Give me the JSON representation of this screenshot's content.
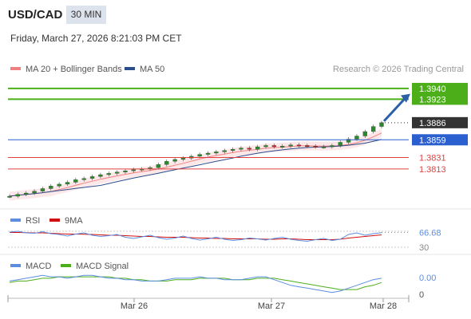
{
  "header": {
    "symbol": "USD/CAD",
    "timeframe": "30 MIN",
    "datetime": "Friday, March 27, 2026 8:21:03 PM CET"
  },
  "colors": {
    "price_line": "#333333",
    "ma20": "#f08080",
    "ma50": "#2b4d8c",
    "resistance": "#4caf1a",
    "pivot": "#2b5fd0",
    "support": "#e04040",
    "rsi": "#5b8de0",
    "rsi_ma": "#d01010",
    "macd": "#5b8de0",
    "macd_signal": "#4caf1a",
    "arrow": "#2b5fa8"
  },
  "chart_data": [
    {
      "type": "candlestick",
      "legend": [
        {
          "name": "MA 20 + Bollinger Bands",
          "color": "#f08080"
        },
        {
          "name": "MA 50",
          "color": "#2b4d8c"
        }
      ],
      "watermark": "Research © 2026 Trading Central",
      "x_ticks": [
        "Mar 26",
        "Mar 27",
        "Mar 28"
      ],
      "ylim": [
        1.3765,
        1.3955
      ],
      "price_series": [
        1.377,
        1.3773,
        1.3775,
        1.3778,
        1.3782,
        1.3786,
        1.3789,
        1.3792,
        1.3796,
        1.3798,
        1.3801,
        1.3804,
        1.3806,
        1.3808,
        1.381,
        1.3812,
        1.3813,
        1.3815,
        1.382,
        1.3825,
        1.3828,
        1.383,
        1.3833,
        1.3836,
        1.3838,
        1.384,
        1.3842,
        1.3844,
        1.3846,
        1.3844,
        1.3848,
        1.385,
        1.3848,
        1.3849,
        1.3851,
        1.385,
        1.3849,
        1.3848,
        1.3848,
        1.385,
        1.3855,
        1.386,
        1.3865,
        1.3872,
        1.388,
        1.3886
      ],
      "current_price": 1.3886,
      "levels": [
        {
          "label": "1.3940",
          "value": 1.394,
          "kind": "resistance"
        },
        {
          "label": "1.3923",
          "value": 1.3923,
          "kind": "resistance"
        },
        {
          "label": "1.3859",
          "value": 1.3859,
          "kind": "pivot"
        },
        {
          "label": "1.3831",
          "value": 1.3831,
          "kind": "support"
        },
        {
          "label": "1.3813",
          "value": 1.3813,
          "kind": "support"
        }
      ],
      "price_label": "1.3886"
    },
    {
      "type": "line",
      "legend": [
        {
          "name": "RSI",
          "color": "#5b8de0"
        },
        {
          "name": "9MA",
          "color": "#d01010"
        }
      ],
      "ylim": [
        28,
        72
      ],
      "tick_labels": [
        "66.68",
        "30"
      ],
      "current_value": 66.68,
      "reference_values": [
        70,
        30
      ],
      "rsi_series": [
        68,
        70,
        66,
        65,
        69,
        64,
        62,
        58,
        63,
        66,
        60,
        57,
        59,
        62,
        55,
        52,
        56,
        60,
        54,
        50,
        53,
        58,
        52,
        48,
        51,
        55,
        50,
        47,
        49,
        53,
        51,
        48,
        52,
        55,
        50,
        47,
        45,
        49,
        52,
        47,
        50,
        62,
        66,
        60,
        64,
        66.68
      ],
      "ma9_series": [
        67,
        67,
        66.5,
        66,
        66,
        65,
        64,
        63,
        63,
        62.5,
        62,
        61,
        60,
        60,
        59,
        58,
        57,
        57,
        56,
        55,
        55,
        55,
        54,
        53,
        53,
        52,
        52,
        51,
        51,
        51,
        51,
        50,
        50,
        51,
        51,
        50,
        49,
        49,
        49,
        49,
        50,
        53,
        55,
        57,
        59,
        61
      ]
    },
    {
      "type": "line",
      "legend": [
        {
          "name": "MACD",
          "color": "#5b8de0"
        },
        {
          "name": "MACD Signal",
          "color": "#4caf1a"
        }
      ],
      "ylim": [
        -0.0009,
        0.0009
      ],
      "tick_labels": [
        "0.00",
        "0"
      ],
      "macd_series": [
        0.0002,
        0.0003,
        0.0004,
        0.0005,
        0.0006,
        0.0005,
        0.0005,
        0.0004,
        0.0005,
        0.0006,
        0.0006,
        0.0005,
        0.0004,
        0.0004,
        0.0003,
        0.0003,
        0.0002,
        0.0002,
        0.0002,
        0.0003,
        0.0004,
        0.0004,
        0.0004,
        0.0005,
        0.0004,
        0.0004,
        0.0003,
        0.0003,
        0.0003,
        0.0004,
        0.0005,
        0.0005,
        0.0003,
        0.0001,
        -0.0001,
        -0.0002,
        -0.0003,
        -0.0004,
        -0.0005,
        -0.0006,
        -0.0005,
        -0.0003,
        -0.0001,
        0.0001,
        0.0003,
        0.0004
      ],
      "signal_series": [
        0.0001,
        0.0002,
        0.0002,
        0.0003,
        0.0004,
        0.0004,
        0.0005,
        0.0005,
        0.0005,
        0.0005,
        0.0005,
        0.0005,
        0.0005,
        0.0004,
        0.0004,
        0.0003,
        0.0003,
        0.0002,
        0.0002,
        0.0002,
        0.0003,
        0.0003,
        0.0003,
        0.0004,
        0.0004,
        0.0004,
        0.0004,
        0.0003,
        0.0003,
        0.0003,
        0.0004,
        0.0004,
        0.0004,
        0.0003,
        0.0002,
        0.0001,
        0.0,
        -0.0001,
        -0.0002,
        -0.0003,
        -0.0004,
        -0.0004,
        -0.0004,
        -0.0002,
        -0.0001,
        0.0001
      ]
    }
  ]
}
